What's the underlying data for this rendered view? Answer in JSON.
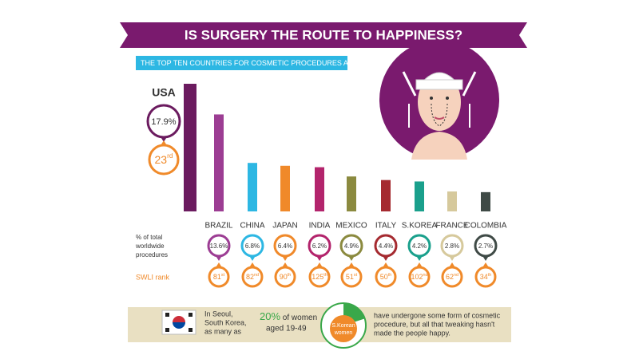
{
  "title": "IS SURGERY THE ROUTE TO HAPPINESS?",
  "subtitle": "THE TOP TEN COUNTRIES FOR COSMETIC PROCEDURES ARE:",
  "chart_data": {
    "type": "bar",
    "categories": [
      "USA",
      "BRAZIL",
      "CHINA",
      "JAPAN",
      "INDIA",
      "MEXICO",
      "ITALY",
      "S.KOREA",
      "FRANCE",
      "COLOMBIA"
    ],
    "values": [
      17.9,
      13.6,
      6.8,
      6.4,
      6.2,
      4.9,
      4.4,
      4.2,
      2.8,
      2.7
    ],
    "value_labels": [
      "17.9%",
      "13.6%",
      "6.8%",
      "6.4%",
      "6.2%",
      "4.9%",
      "4.4%",
      "4.2%",
      "2.8%",
      "2.7%"
    ],
    "colors": [
      "#6b1b5f",
      "#9c3d93",
      "#2db7e3",
      "#f0892a",
      "#b3246c",
      "#8b8a3f",
      "#a52a30",
      "#1aa08c",
      "#d6c99c",
      "#3f4a46"
    ],
    "value_row_label": [
      "% of total",
      "worldwide",
      "procedures"
    ],
    "rank_row_label": "SWLI rank",
    "ranks": [
      23,
      81,
      82,
      90,
      125,
      51,
      50,
      102,
      62,
      34
    ],
    "rank_labels": [
      "23rd",
      "81st",
      "82nd",
      "90th",
      "125th",
      "51st",
      "50th",
      "102nd",
      "62nd",
      "34th"
    ]
  },
  "footer": {
    "lead": [
      "In Seoul,",
      "South Korea,",
      "as many as"
    ],
    "percent": 20,
    "percent_label": "20%",
    "percent_tail": " of women",
    "age": "aged 19-49",
    "pie_label": [
      "S.Korean",
      "women"
    ],
    "tail": [
      "have undergone some form of cosmetic",
      "procedure, but all that tweaking hasn't",
      "made the people happy."
    ]
  }
}
